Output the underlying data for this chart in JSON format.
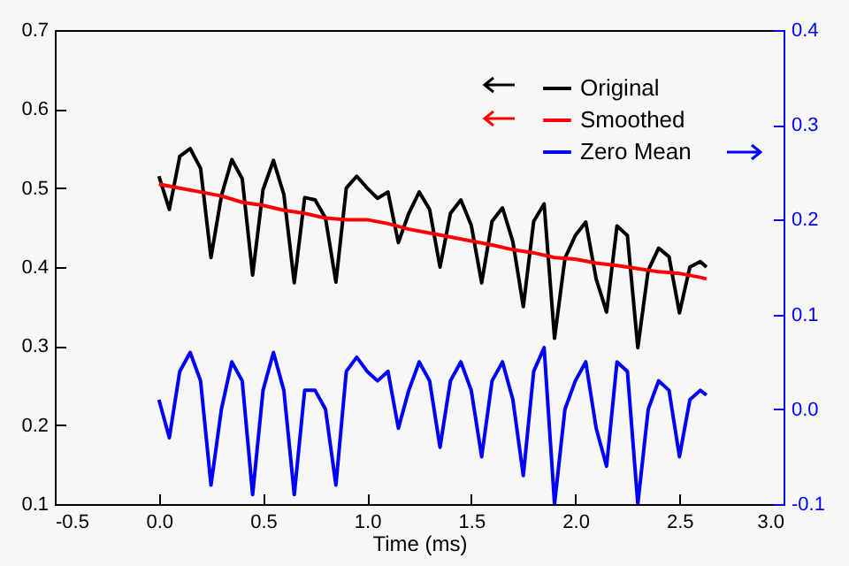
{
  "chart_data": {
    "type": "line",
    "xlabel": "Time (ms)",
    "xlim": [
      -0.5,
      3.0
    ],
    "xticks": [
      -0.5,
      {
        "value": 0,
        "label": "0.0"
      },
      0.5,
      {
        "value": 1,
        "label": "1.0"
      },
      1.5,
      {
        "value": 2,
        "label": "2.0"
      },
      2.5,
      {
        "value": 3,
        "label": "3.0"
      }
    ],
    "ylim": [
      0.1,
      0.7
    ],
    "yticks": [
      0.1,
      0.2,
      0.3,
      0.4,
      0.5,
      0.6,
      0.7
    ],
    "y2lim": [
      -0.1,
      0.4
    ],
    "y2ticks": [
      -0.1,
      {
        "value": 0,
        "label": "0.0"
      },
      0.1,
      0.2,
      0.3,
      0.4
    ],
    "legend": "top right",
    "series": [
      {
        "name": "Original",
        "color": "#000000",
        "x": [
          0,
          0.05,
          0.1,
          0.15,
          0.2,
          0.25,
          0.3,
          0.35,
          0.4,
          0.45,
          0.5,
          0.55,
          0.6,
          0.65,
          0.7,
          0.75,
          0.8,
          0.85,
          0.9,
          0.95,
          1.0,
          1.05,
          1.1,
          1.15,
          1.2,
          1.25,
          1.3,
          1.35,
          1.4,
          1.45,
          1.5,
          1.55,
          1.6,
          1.65,
          1.7,
          1.75,
          1.8,
          1.85,
          1.9,
          1.95,
          2.0,
          2.05,
          2.1,
          2.15,
          2.2,
          2.25,
          2.3,
          2.35,
          2.4,
          2.45,
          2.5,
          2.55,
          2.6,
          2.63
        ],
        "values": [
          0.515,
          0.473,
          0.54,
          0.55,
          0.525,
          0.412,
          0.49,
          0.536,
          0.512,
          0.39,
          0.498,
          0.535,
          0.492,
          0.38,
          0.488,
          0.485,
          0.462,
          0.381,
          0.5,
          0.515,
          0.5,
          0.487,
          0.495,
          0.431,
          0.468,
          0.495,
          0.473,
          0.4,
          0.468,
          0.485,
          0.453,
          0.38,
          0.458,
          0.475,
          0.432,
          0.35,
          0.458,
          0.48,
          0.31,
          0.411,
          0.44,
          0.457,
          0.385,
          0.343,
          0.452,
          0.44,
          0.298,
          0.396,
          0.424,
          0.413,
          0.342,
          0.4,
          0.407,
          0.4
        ]
      },
      {
        "name": "Smoothed",
        "color": "#ff0000",
        "x": [
          0,
          0.1,
          0.2,
          0.3,
          0.4,
          0.5,
          0.6,
          0.7,
          0.8,
          0.9,
          1.0,
          1.1,
          1.2,
          1.3,
          1.4,
          1.5,
          1.6,
          1.7,
          1.8,
          1.9,
          2.0,
          2.1,
          2.2,
          2.3,
          2.4,
          2.5,
          2.6,
          2.63
        ],
        "values": [
          0.505,
          0.5,
          0.495,
          0.49,
          0.482,
          0.478,
          0.472,
          0.468,
          0.462,
          0.46,
          0.46,
          0.455,
          0.448,
          0.443,
          0.438,
          0.433,
          0.428,
          0.422,
          0.418,
          0.412,
          0.41,
          0.405,
          0.402,
          0.398,
          0.394,
          0.392,
          0.387,
          0.385
        ]
      },
      {
        "name": "Zero Mean",
        "color": "#0000ff",
        "axis": "y2",
        "x": [
          0,
          0.05,
          0.1,
          0.15,
          0.2,
          0.25,
          0.3,
          0.35,
          0.4,
          0.45,
          0.5,
          0.55,
          0.6,
          0.65,
          0.7,
          0.75,
          0.8,
          0.85,
          0.9,
          0.95,
          1.0,
          1.05,
          1.1,
          1.15,
          1.2,
          1.25,
          1.3,
          1.35,
          1.4,
          1.45,
          1.5,
          1.55,
          1.6,
          1.65,
          1.7,
          1.75,
          1.8,
          1.85,
          1.9,
          1.95,
          2.0,
          2.05,
          2.1,
          2.15,
          2.2,
          2.25,
          2.3,
          2.35,
          2.4,
          2.45,
          2.5,
          2.55,
          2.6,
          2.63
        ],
        "values": [
          0.01,
          -0.03,
          0.04,
          0.06,
          0.03,
          -0.08,
          0.0,
          0.05,
          0.03,
          -0.09,
          0.02,
          0.06,
          0.02,
          -0.09,
          0.02,
          0.02,
          0.0,
          -0.08,
          0.04,
          0.055,
          0.04,
          0.03,
          0.04,
          -0.02,
          0.02,
          0.05,
          0.03,
          -0.04,
          0.03,
          0.05,
          0.02,
          -0.05,
          0.03,
          0.05,
          0.01,
          -0.07,
          0.04,
          0.065,
          -0.1,
          0.0,
          0.03,
          0.05,
          -0.02,
          -0.06,
          0.05,
          0.04,
          -0.1,
          0.0,
          0.03,
          0.02,
          -0.05,
          0.01,
          0.02,
          0.015
        ]
      }
    ]
  }
}
